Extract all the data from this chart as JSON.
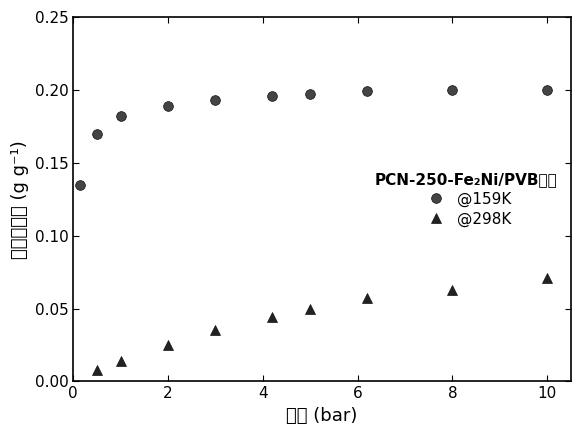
{
  "series_159K": {
    "x": [
      0.15,
      0.5,
      1.0,
      2.0,
      3.0,
      4.2,
      5.0,
      6.2,
      8.0,
      10.0
    ],
    "y": [
      0.135,
      0.17,
      0.182,
      0.189,
      0.193,
      0.196,
      0.197,
      0.199,
      0.2,
      0.2
    ]
  },
  "series_298K": {
    "x": [
      0.5,
      1.0,
      2.0,
      3.0,
      4.2,
      5.0,
      6.2,
      8.0,
      10.0
    ],
    "y": [
      0.008,
      0.014,
      0.025,
      0.035,
      0.044,
      0.05,
      0.057,
      0.063,
      0.071
    ]
  },
  "xlabel": "压力 (bar)",
  "ylabel_chinese": "甲烷总吸收",
  "ylabel_unit": "(g g⁻¹)",
  "xlim": [
    0,
    10.5
  ],
  "ylim": [
    0,
    0.25
  ],
  "xticks": [
    0,
    2,
    4,
    6,
    8,
    10
  ],
  "yticks": [
    0.0,
    0.05,
    0.1,
    0.15,
    0.2,
    0.25
  ],
  "legend_title": "PCN-250-Fe₂Ni/PVB吸附",
  "legend_label_159K": "@159K",
  "legend_label_298K": "@298K",
  "marker_color": "#1a1a1a",
  "background_color": "#ffffff"
}
